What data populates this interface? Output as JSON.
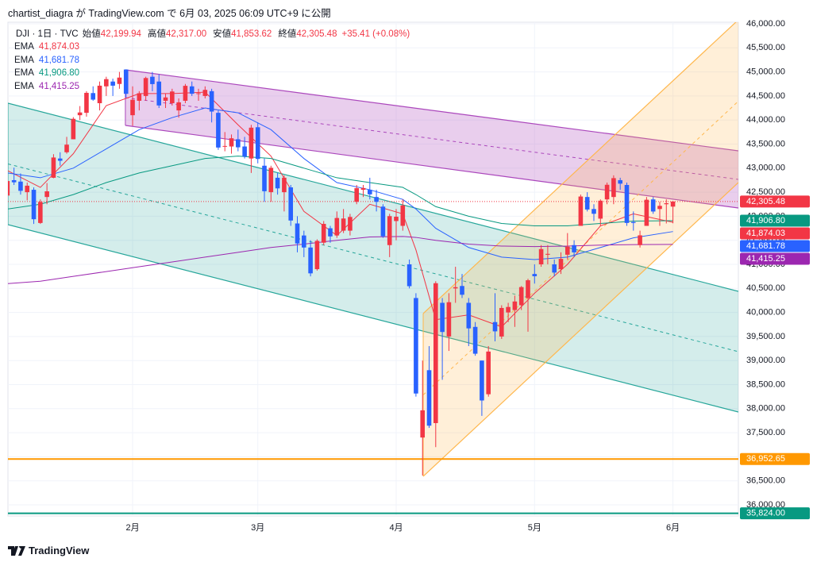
{
  "caption": "chartist_diagra が TradingView.com で 6月 03, 2025 06:09 UTC+9 に公開",
  "footer": "TradingView",
  "chart_data": {
    "type": "candlestick",
    "symbol": "DJI · 1日 · TVC",
    "ohlc_header": [
      {
        "label": "始値",
        "value": "42,199.94"
      },
      {
        "label": "高値",
        "value": "42,317.00"
      },
      {
        "label": "安値",
        "value": "41,853.62"
      },
      {
        "label": "終値",
        "value": "42,305.48"
      }
    ],
    "change": "+35.41 (+0.08%)",
    "categories": [
      null,
      null,
      null,
      null,
      null,
      null,
      null,
      null,
      null,
      null,
      null,
      null,
      null,
      null,
      null,
      null,
      null,
      null,
      null,
      "2月",
      null,
      null,
      null,
      null,
      null,
      null,
      null,
      null,
      null,
      null,
      null,
      null,
      null,
      null,
      null,
      null,
      null,
      null,
      "3月",
      null,
      null,
      null,
      null,
      null,
      null,
      null,
      null,
      null,
      null,
      null,
      null,
      null,
      null,
      null,
      null,
      null,
      null,
      null,
      null,
      "4月",
      null,
      null,
      null,
      null,
      null,
      null,
      null,
      null,
      null,
      null,
      null,
      null,
      null,
      null,
      null,
      null,
      null,
      null,
      null,
      null,
      "5月",
      null,
      null,
      null,
      null,
      null,
      null,
      null,
      null,
      null,
      null,
      null,
      null,
      null,
      null,
      null,
      null,
      null,
      null,
      null,
      null,
      "6月"
    ],
    "open": [
      42430,
      42750,
      42720,
      42500,
      42550,
      41860,
      42400,
      42800,
      43200,
      43330,
      43600,
      44100,
      44150,
      44560,
      44350,
      44700,
      44800,
      44750,
      45050,
      44100,
      44400,
      44500,
      44900,
      44800,
      44400,
      44350,
      44200,
      44400,
      44700,
      44550,
      44500,
      44600,
      44150,
      43450,
      43450,
      43600,
      43450,
      43200,
      43850,
      43050,
      42500,
      42800,
      42500,
      42600,
      41850,
      41600,
      41350,
      40900,
      41450,
      41750,
      41600,
      41700,
      41700,
      42300,
      42550,
      42550,
      42400,
      42200,
      41400,
      41900,
      41800,
      41000,
      40300,
      37400,
      38800,
      37700,
      40200,
      39500,
      40500,
      40550,
      40200,
      39700,
      39000,
      38300,
      39800,
      39500,
      40000,
      40050,
      40150,
      40300,
      40800,
      41000,
      41200,
      41000,
      40900,
      41200,
      41400,
      41800,
      42400,
      42150,
      41950,
      42350,
      42400,
      42750,
      42650,
      41880,
      41400,
      41800,
      42350,
      42150,
      42250,
      42199.94
    ],
    "high": [
      42770,
      43010,
      42890,
      42700,
      42600,
      42350,
      42690,
      43290,
      43330,
      43650,
      44060,
      44290,
      44600,
      44700,
      44800,
      44900,
      44860,
      45000,
      45054,
      44700,
      44600,
      44900,
      45000,
      44950,
      44550,
      44650,
      44450,
      44750,
      44800,
      44650,
      44700,
      44650,
      44200,
      43750,
      43700,
      43800,
      43650,
      43900,
      43950,
      43200,
      43050,
      42900,
      42850,
      42650,
      42000,
      41700,
      41500,
      41520,
      41900,
      41800,
      42100,
      42150,
      42050,
      42650,
      42650,
      42800,
      42550,
      42250,
      42050,
      42150,
      42350,
      41100,
      40400,
      39000,
      39300,
      40650,
      40300,
      40400,
      40950,
      40800,
      40300,
      39800,
      39000,
      39300,
      40400,
      40150,
      40200,
      40350,
      40550,
      40700,
      41000,
      41400,
      41400,
      41100,
      41250,
      41650,
      41500,
      42450,
      42500,
      42250,
      42350,
      42700,
      42850,
      42800,
      42700,
      42100,
      41700,
      42400,
      42400,
      42300,
      42350,
      42317.0
    ],
    "low": [
      42370,
      42650,
      42450,
      42330,
      41840,
      41840,
      42250,
      42790,
      43050,
      43300,
      43600,
      44000,
      44070,
      44400,
      44200,
      44500,
      44500,
      44650,
      44470,
      43880,
      44200,
      44400,
      44600,
      44250,
      44250,
      44300,
      44050,
      44350,
      44500,
      44400,
      44450,
      43950,
      43380,
      43350,
      43300,
      43350,
      43200,
      42900,
      43100,
      42300,
      42300,
      42450,
      42100,
      41800,
      41250,
      41150,
      40750,
      40870,
      41400,
      41450,
      41550,
      41650,
      41600,
      42250,
      42400,
      42350,
      42100,
      41550,
      41150,
      41500,
      41700,
      40500,
      38250,
      36612,
      37600,
      37200,
      38600,
      39200,
      40200,
      40300,
      39300,
      39100,
      37850,
      38250,
      39400,
      39450,
      39800,
      39700,
      40050,
      39600,
      40600,
      40950,
      41000,
      40750,
      40800,
      41100,
      41150,
      41800,
      42100,
      41900,
      41800,
      42250,
      42250,
      42550,
      41800,
      41700,
      41350,
      41800,
      42050,
      41800,
      41850,
      41853.62
    ],
    "close": [
      42732,
      42706,
      42528,
      42635,
      41938,
      42297,
      42518,
      43221,
      43153,
      43488,
      44025,
      44157,
      44565,
      44424,
      44714,
      44850,
      44714,
      44882,
      44545,
      44421,
      44556,
      44873,
      44747,
      44303,
      44470,
      44593,
      44368,
      44711,
      44546,
      44556,
      44627,
      44176,
      43428,
      43461,
      43621,
      43433,
      43239,
      43841,
      43191,
      42520,
      43006,
      42579,
      42801,
      41911,
      41433,
      41350,
      40813,
      41488,
      41841,
      41581,
      41964,
      41953,
      41985,
      42583,
      42587,
      42455,
      42300,
      41584,
      42002,
      41990,
      42225,
      40546,
      38315,
      37966,
      37646,
      40608,
      39594,
      40213,
      40525,
      40368,
      39669,
      39142,
      38170,
      39187,
      39607,
      40093,
      40114,
      40228,
      40527,
      40669,
      40753,
      41317,
      41218,
      40829,
      41114,
      41368,
      41249,
      42410,
      42140,
      42051,
      42323,
      42654,
      42792,
      42677,
      41860,
      41859,
      41603,
      42343,
      42098,
      42216,
      42270,
      42305.48
    ],
    "close_label": "42,305.48",
    "up_color": "#f23645",
    "down_color": "#2962ff",
    "series": [
      {
        "name": "EMA",
        "color": "#f23645",
        "x": [
          0,
          5,
          10,
          15,
          20,
          25,
          30,
          35,
          40,
          45,
          50,
          55,
          60,
          62,
          65,
          70,
          75,
          80,
          85,
          90,
          95,
          101
        ],
        "values": [
          42950,
          42600,
          43300,
          44300,
          44550,
          44550,
          44580,
          43900,
          43250,
          42100,
          41600,
          42250,
          42050,
          41300,
          39850,
          39950,
          39700,
          40400,
          41000,
          41800,
          42050,
          41874.03
        ],
        "value_labels": [
          null,
          null,
          null,
          null,
          null,
          null,
          null,
          null,
          null,
          null,
          null,
          null,
          null,
          null,
          null,
          null,
          null,
          null,
          null,
          null,
          null,
          "41,874.03"
        ]
      },
      {
        "name": "EMA",
        "color": "#2962ff",
        "x": [
          0,
          5,
          10,
          15,
          20,
          25,
          30,
          35,
          40,
          45,
          50,
          55,
          60,
          62,
          65,
          70,
          75,
          80,
          85,
          90,
          95,
          101
        ],
        "values": [
          42900,
          42800,
          43000,
          43400,
          43800,
          44050,
          44250,
          44150,
          43800,
          43200,
          42700,
          42550,
          42350,
          42150,
          41750,
          41350,
          41150,
          41100,
          41150,
          41350,
          41550,
          41681.78
        ],
        "value_labels": [
          null,
          null,
          null,
          null,
          null,
          null,
          null,
          null,
          null,
          null,
          null,
          null,
          null,
          null,
          null,
          null,
          null,
          null,
          null,
          null,
          null,
          "41,681.78"
        ]
      },
      {
        "name": "EMA",
        "color": "#089981",
        "x": [
          0,
          5,
          10,
          15,
          20,
          25,
          30,
          35,
          40,
          45,
          50,
          55,
          60,
          62,
          65,
          70,
          75,
          80,
          85,
          90,
          95,
          101
        ],
        "values": [
          42150,
          42250,
          42450,
          42700,
          42900,
          43050,
          43200,
          43250,
          43200,
          43000,
          42800,
          42700,
          42600,
          42450,
          42200,
          42000,
          41850,
          41800,
          41800,
          41850,
          41900,
          41906.8
        ],
        "value_labels": [
          null,
          null,
          null,
          null,
          null,
          null,
          null,
          null,
          null,
          null,
          null,
          null,
          null,
          null,
          null,
          null,
          null,
          null,
          null,
          null,
          null,
          "41,906.80"
        ]
      },
      {
        "name": "EMA",
        "color": "#9c27b0",
        "x": [
          0,
          5,
          10,
          15,
          20,
          25,
          30,
          35,
          40,
          45,
          50,
          55,
          60,
          62,
          65,
          70,
          75,
          80,
          85,
          90,
          95,
          101
        ],
        "values": [
          40600,
          40650,
          40750,
          40850,
          40950,
          41050,
          41150,
          41250,
          41350,
          41420,
          41500,
          41570,
          41580,
          41560,
          41500,
          41420,
          41380,
          41370,
          41380,
          41400,
          41410,
          41415.25
        ],
        "value_labels": [
          null,
          null,
          null,
          null,
          null,
          null,
          null,
          null,
          null,
          null,
          null,
          null,
          null,
          null,
          null,
          null,
          null,
          null,
          null,
          null,
          null,
          "41,415.25"
        ]
      }
    ],
    "channels": [
      {
        "color": "#26a69a",
        "fill": "rgba(38,166,154,0.2)",
        "x": [
          0.08,
          110.93
        ],
        "upper": [
          44350,
          40439
        ],
        "lower": [
          41825,
          37931
        ]
      },
      {
        "color": "#ab47bc",
        "fill": "rgba(186,104,200,0.32)",
        "x": [
          17.9,
          110.93
        ],
        "upper": [
          45043,
          43360
        ],
        "lower": [
          43888,
          42171
        ]
      },
      {
        "color": "#ffb74d",
        "fill": "rgba(255,183,77,0.22)",
        "x": [
          63.1,
          110.93
        ],
        "upper": [
          39977,
          46083
        ],
        "lower": [
          36594,
          42700
        ]
      }
    ],
    "hlines": [
      {
        "value": 36952.65,
        "label": "36,952.65",
        "color": "#ff9800"
      },
      {
        "value": 35824,
        "label": "35,824.00",
        "color": "#089981"
      }
    ],
    "xlim": [
      0.08,
      110.93
    ],
    "ylim": [
      35769,
      46033
    ],
    "yticks": [
      {
        "value": 36000,
        "label": "36,000.00"
      },
      {
        "value": 36500,
        "label": "36,500.00"
      },
      {
        "value": 37000,
        "label": "37,000.00"
      },
      {
        "value": 37500,
        "label": "37,500.00"
      },
      {
        "value": 38000,
        "label": "38,000.00"
      },
      {
        "value": 38500,
        "label": "38,500.00"
      },
      {
        "value": 39000,
        "label": "39,000.00"
      },
      {
        "value": 39500,
        "label": "39,500.00"
      },
      {
        "value": 40000,
        "label": "40,000.00"
      },
      {
        "value": 40500,
        "label": "40,500.00"
      },
      {
        "value": 41000,
        "label": "41,000.00"
      },
      {
        "value": 41500,
        "label": "41,500.00"
      },
      {
        "value": 42000,
        "label": "42,000.00"
      },
      {
        "value": 42500,
        "label": "42,500.00"
      },
      {
        "value": 43000,
        "label": "43,000.00"
      },
      {
        "value": 43500,
        "label": "43,500.00"
      },
      {
        "value": 44000,
        "label": "44,000.00"
      },
      {
        "value": 44500,
        "label": "44,500.00"
      },
      {
        "value": 45000,
        "label": "45,000.00"
      },
      {
        "value": 45500,
        "label": "45,500.00"
      },
      {
        "value": 46000,
        "label": "46,000.00"
      }
    ],
    "grid": true
  }
}
